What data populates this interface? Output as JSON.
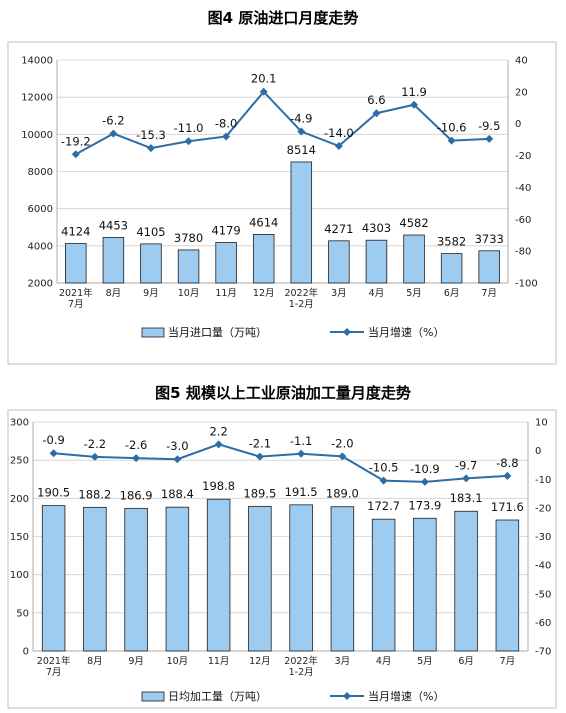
{
  "chart_data": [
    {
      "type": "bar",
      "title": "图4  原油进口月度走势",
      "categories": [
        "2021年\n7月",
        "8月",
        "9月",
        "10月",
        "11月",
        "12月",
        "2022年\n1-2月",
        "3月",
        "4月",
        "5月",
        "6月",
        "7月"
      ],
      "series": [
        {
          "name": "当月进口量（万吨）",
          "kind": "bar",
          "axis": "left",
          "values": [
            4124,
            4453,
            4105,
            3780,
            4179,
            4614,
            8514,
            4271,
            4303,
            4582,
            3582,
            3733
          ]
        },
        {
          "name": "当月增速（%）",
          "kind": "line",
          "axis": "right",
          "values": [
            -19.2,
            -6.2,
            -15.3,
            -11.0,
            -8.0,
            20.1,
            -4.9,
            -14.0,
            6.6,
            11.9,
            -10.6,
            -9.5
          ]
        }
      ],
      "ylim_left": [
        2000,
        14000
      ],
      "yticks_left": [
        "2000",
        "4000",
        "6000",
        "8000",
        "10000",
        "12000",
        "14000"
      ],
      "ylim_right": [
        -100,
        40
      ],
      "yticks_right": [
        "-100",
        "-80",
        "-60",
        "-40",
        "-20",
        "0",
        "20",
        "40"
      ],
      "bar_labels": [
        "4124",
        "4453",
        "4105",
        "3780",
        "4179",
        "4614",
        "8514",
        "4271",
        "4303",
        "4582",
        "3582",
        "3733"
      ],
      "line_labels": [
        "-19.2",
        "-6.2",
        "-15.3",
        "-11.0",
        "-8.0",
        "20.1",
        "-4.9",
        "-14.0",
        "6.6",
        "11.9",
        "-10.6",
        "-9.5"
      ],
      "grid": true,
      "legend_position": "bottom"
    },
    {
      "type": "bar",
      "title": "图5  规模以上工业原油加工量月度走势",
      "categories": [
        "2021年\n7月",
        "8月",
        "9月",
        "10月",
        "11月",
        "12月",
        "2022年\n1-2月",
        "3月",
        "4月",
        "5月",
        "6月",
        "7月"
      ],
      "series": [
        {
          "name": "日均加工量（万吨）",
          "kind": "bar",
          "axis": "left",
          "values": [
            190.5,
            188.2,
            186.9,
            188.4,
            198.8,
            189.5,
            191.5,
            189.0,
            172.7,
            173.9,
            183.1,
            171.6
          ]
        },
        {
          "name": "当月增速（%）",
          "kind": "line",
          "axis": "right",
          "values": [
            -0.9,
            -2.2,
            -2.6,
            -3.0,
            2.2,
            -2.1,
            -1.1,
            -2.0,
            -10.5,
            -10.9,
            -9.7,
            -8.8
          ]
        }
      ],
      "ylim_left": [
        0,
        300
      ],
      "yticks_left": [
        "0",
        "50",
        "100",
        "150",
        "200",
        "250",
        "300"
      ],
      "ylim_right": [
        -70,
        10
      ],
      "yticks_right": [
        "-70",
        "-60",
        "-50",
        "-40",
        "-30",
        "-20",
        "-10",
        "0",
        "10"
      ],
      "bar_labels": [
        "190.5",
        "188.2",
        "186.9",
        "188.4",
        "198.8",
        "189.5",
        "191.5",
        "189.0",
        "172.7",
        "173.9",
        "183.1",
        "171.6"
      ],
      "line_labels": [
        "-0.9",
        "-2.2",
        "-2.6",
        "-3.0",
        "2.2",
        "-2.1",
        "-1.1",
        "-2.0",
        "-10.5",
        "-10.9",
        "-9.7",
        "-8.8"
      ],
      "grid": true,
      "legend_position": "bottom"
    }
  ],
  "colors": {
    "bar_fill": "#9ecbf0",
    "bar_stroke": "#1f1f1f",
    "line": "#2e6da4"
  }
}
